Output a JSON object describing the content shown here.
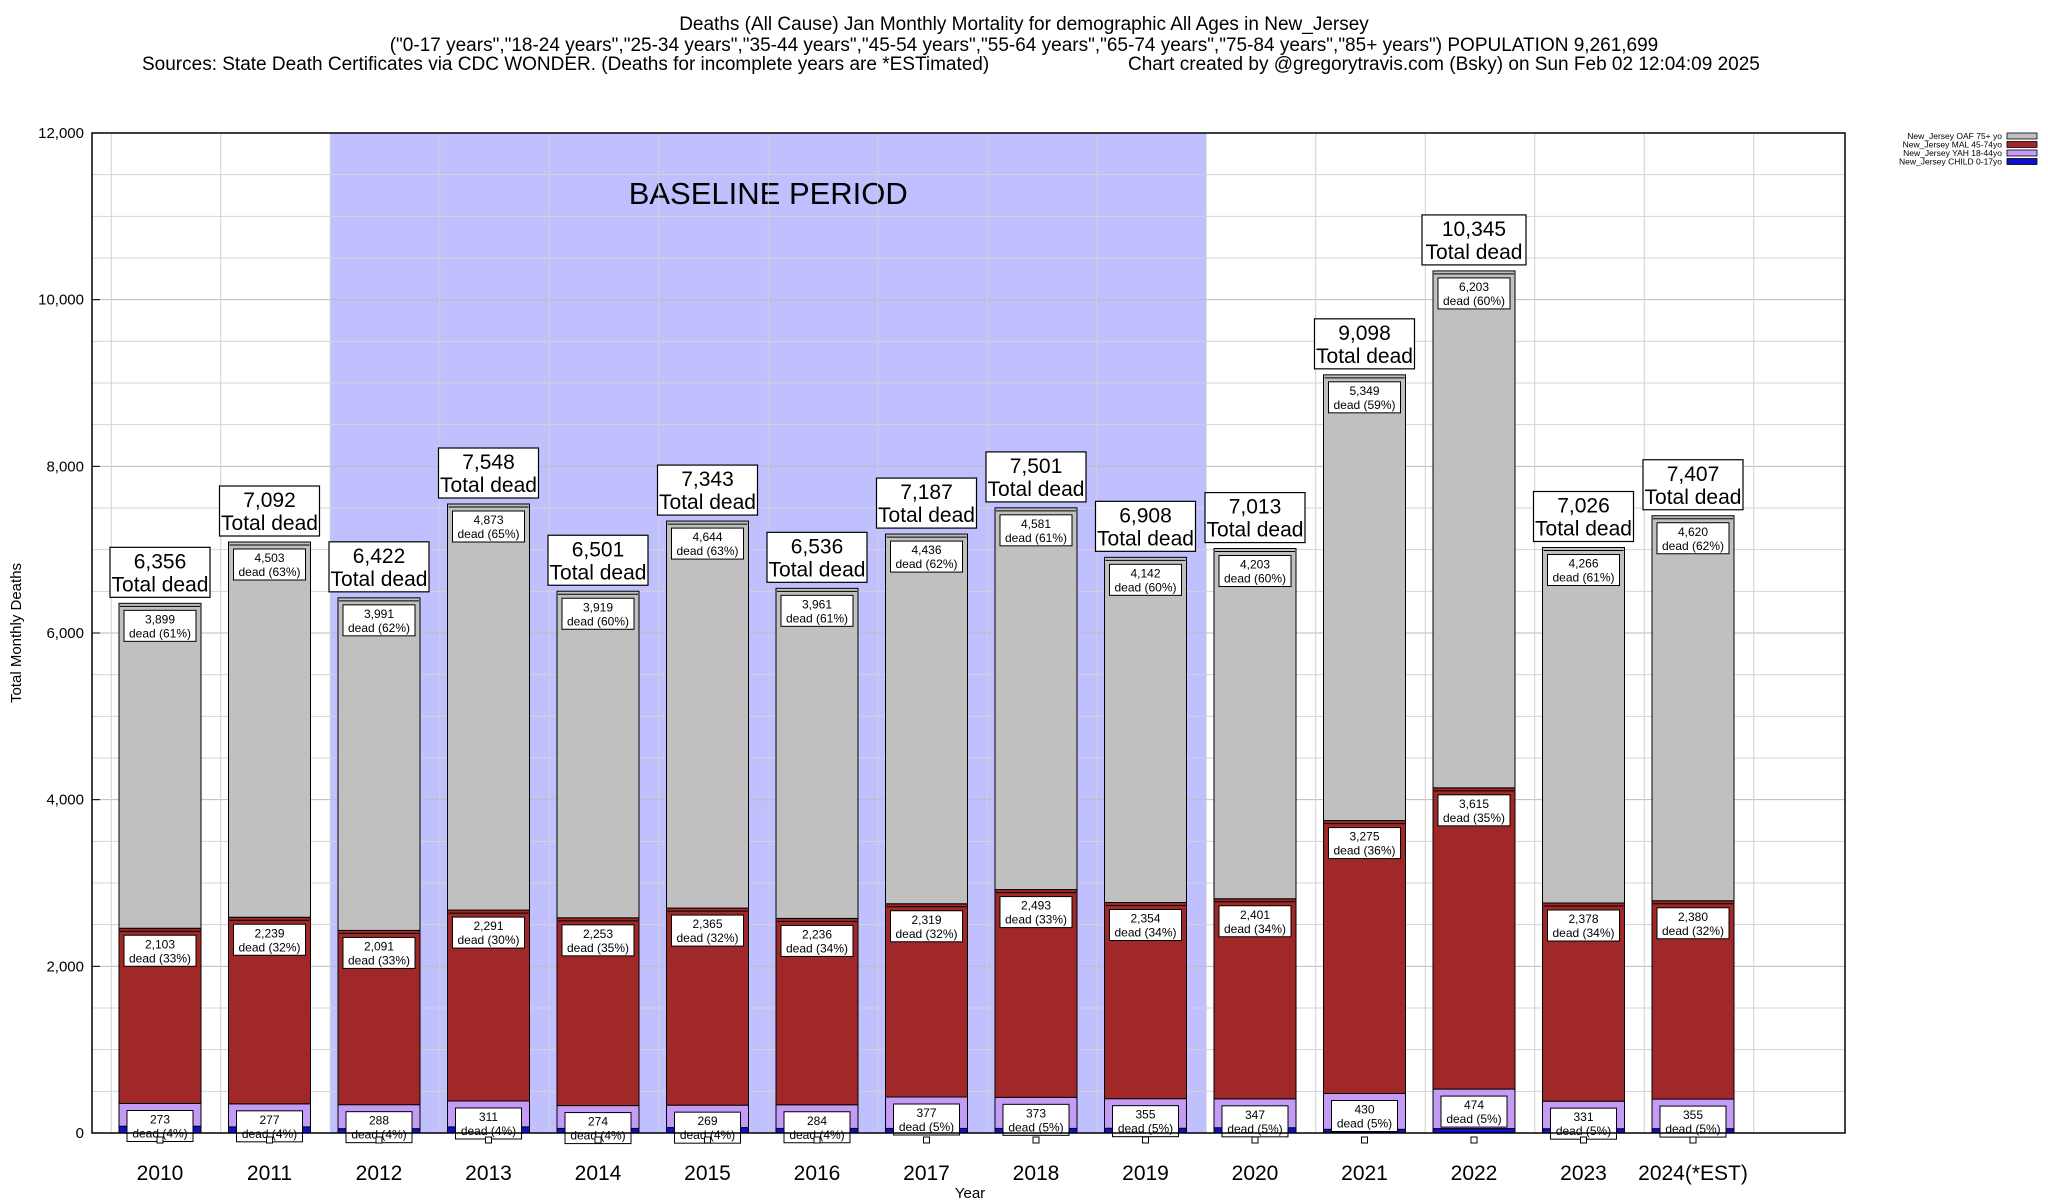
{
  "header": {
    "title": "Deaths (All Cause) Jan Monthly Mortality for demographic All Ages in New_Jersey",
    "subtitle": "(\"0-17 years\",\"18-24 years\",\"25-34 years\",\"35-44 years\",\"45-54 years\",\"55-64 years\",\"65-74 years\",\"75-84 years\",\"85+ years\") POPULATION 9,261,699",
    "sources": "Sources: State Death Certificates via CDC WONDER. (Deaths for incomplete years are *ESTimated)",
    "credit": "Chart created by @gregorytravis.com (Bsky) on Sun Feb 02 12:04:09 2025"
  },
  "colors": {
    "oaf": "#c0c0c0",
    "mal": "#a12828",
    "yah": "#c49cf5",
    "child": "#1010cc",
    "baseline": "#c0c0ff"
  },
  "chart_data": {
    "type": "bar",
    "stacked": true,
    "xlabel": "Year",
    "ylabel": "Total Monthly Deaths",
    "ylim": [
      0,
      12000
    ],
    "yticks": [
      0,
      2000,
      4000,
      6000,
      8000,
      10000,
      12000
    ],
    "ytick_labels": [
      "0",
      "2,000",
      "4,000",
      "6,000",
      "8,000",
      "10,000",
      "12,000"
    ],
    "categories": [
      "2010",
      "2011",
      "2012",
      "2013",
      "2014",
      "2015",
      "2016",
      "2017",
      "2018",
      "2019",
      "2020",
      "2021",
      "2022",
      "2023",
      "2024(*EST)"
    ],
    "baseline_label": "BASELINE PERIOD",
    "baseline_range": [
      "2012",
      "2019"
    ],
    "legend_position": "top-right",
    "total_suffix": "Total dead",
    "series": [
      {
        "name": "New_Jersey CHILD 0-17yo",
        "key": "child",
        "values": [
          81,
          73,
          52,
          73,
          55,
          65,
          55,
          55,
          55,
          57,
          63,
          44,
          53,
          51,
          52
        ],
        "labels": [
          "",
          "",
          "",
          "",
          "",
          "",
          "",
          "",
          "",
          "",
          "",
          "",
          "",
          "",
          ""
        ]
      },
      {
        "name": "New_Jersey YAH 18-44yo",
        "key": "yah",
        "values": [
          273,
          277,
          288,
          311,
          274,
          269,
          284,
          377,
          373,
          355,
          347,
          430,
          474,
          331,
          355
        ],
        "labels": [
          "273\ndead (4%)",
          "277\ndead (4%)",
          "288\ndead (4%)",
          "311\ndead (4%)",
          "274\ndead (4%)",
          "269\ndead (4%)",
          "284\ndead (4%)",
          "377\ndead (5%)",
          "373\ndead (5%)",
          "355\ndead (5%)",
          "347\ndead (5%)",
          "430\ndead (5%)",
          "474\ndead (5%)",
          "331\ndead (5%)",
          "355\ndead (5%)"
        ]
      },
      {
        "name": "New_Jersey MAL 45-74yo",
        "key": "mal",
        "values": [
          2103,
          2239,
          2091,
          2291,
          2253,
          2365,
          2236,
          2319,
          2493,
          2354,
          2401,
          3275,
          3615,
          2378,
          2380
        ],
        "labels": [
          "2,103\ndead (33%)",
          "2,239\ndead (32%)",
          "2,091\ndead (33%)",
          "2,291\ndead (30%)",
          "2,253\ndead (35%)",
          "2,365\ndead (32%)",
          "2,236\ndead (34%)",
          "2,319\ndead (32%)",
          "2,493\ndead (33%)",
          "2,354\ndead (34%)",
          "2,401\ndead (34%)",
          "3,275\ndead (36%)",
          "3,615\ndead (35%)",
          "2,378\ndead (34%)",
          "2,380\ndead (32%)"
        ]
      },
      {
        "name": "New_Jersey OAF 75+ yo",
        "key": "oaf",
        "values": [
          3899,
          4503,
          3991,
          4873,
          3919,
          4644,
          3961,
          4436,
          4581,
          4142,
          4203,
          5349,
          6203,
          4266,
          4620
        ],
        "labels": [
          "3,899\ndead (61%)",
          "4,503\ndead (63%)",
          "3,991\ndead (62%)",
          "4,873\ndead (65%)",
          "3,919\ndead (60%)",
          "4,644\ndead (63%)",
          "3,961\ndead (61%)",
          "4,436\ndead (62%)",
          "4,581\ndead (61%)",
          "4,142\ndead (60%)",
          "4,203\ndead (60%)",
          "5,349\ndead (59%)",
          "6,203\ndead (60%)",
          "4,266\ndead (61%)",
          "4,620\ndead (62%)"
        ]
      }
    ],
    "totals": [
      6356,
      7092,
      6422,
      7548,
      6501,
      7343,
      6536,
      7187,
      7501,
      6908,
      7013,
      9098,
      10345,
      7026,
      7407
    ],
    "total_labels": [
      "6,356",
      "7,092",
      "6,422",
      "7,548",
      "6,501",
      "7,343",
      "6,536",
      "7,187",
      "7,501",
      "6,908",
      "7,013",
      "9,098",
      "10,345",
      "7,026",
      "7,407"
    ]
  }
}
